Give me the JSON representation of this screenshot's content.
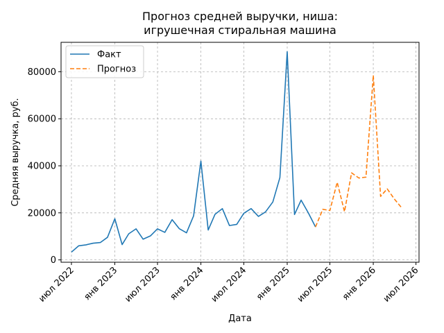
{
  "chart_data": {
    "type": "line",
    "title_lines": [
      "Прогноз средней выручки, ниша:",
      "игрушечная стиральная машина"
    ],
    "xlabel": "Дата",
    "ylabel": "Средняя выручка, руб.",
    "xlim": [
      "2022-05-18",
      "2026-07-14"
    ],
    "ylim": [
      -1000,
      92500
    ],
    "x_ticks": [
      {
        "date": "2022-07-01",
        "label": "июл 2022"
      },
      {
        "date": "2023-01-01",
        "label": "янв 2023"
      },
      {
        "date": "2023-07-01",
        "label": "июл 2023"
      },
      {
        "date": "2024-01-01",
        "label": "янв 2024"
      },
      {
        "date": "2024-07-01",
        "label": "июл 2024"
      },
      {
        "date": "2025-01-01",
        "label": "янв 2025"
      },
      {
        "date": "2025-07-01",
        "label": "июл 2025"
      },
      {
        "date": "2026-01-01",
        "label": "янв 2026"
      },
      {
        "date": "2026-07-01",
        "label": "июл 2026"
      }
    ],
    "y_ticks": [
      0,
      20000,
      40000,
      60000,
      80000
    ],
    "y_tick_labels": [
      "0",
      "20000",
      "40000",
      "60000",
      "80000"
    ],
    "grid": true,
    "legend_position": "top-left",
    "series": [
      {
        "name": "Факт",
        "color": "#1f77b4",
        "style": "solid",
        "x": [
          "2022-07-01",
          "2022-08-01",
          "2022-09-01",
          "2022-10-01",
          "2022-11-01",
          "2022-12-01",
          "2023-01-01",
          "2023-02-01",
          "2023-03-01",
          "2023-04-01",
          "2023-05-01",
          "2023-06-01",
          "2023-07-01",
          "2023-08-01",
          "2023-09-01",
          "2023-10-01",
          "2023-11-01",
          "2023-12-01",
          "2024-01-01",
          "2024-02-01",
          "2024-03-01",
          "2024-04-01",
          "2024-05-01",
          "2024-06-01",
          "2024-07-01",
          "2024-08-01",
          "2024-09-01",
          "2024-10-01",
          "2024-11-01",
          "2024-12-01",
          "2025-01-01",
          "2025-02-01",
          "2025-03-01",
          "2025-04-01",
          "2025-05-01"
        ],
        "values": [
          3300,
          6000,
          6400,
          7100,
          7400,
          9600,
          17500,
          6500,
          11100,
          13200,
          8800,
          10200,
          13200,
          11700,
          17100,
          13300,
          11500,
          18700,
          42000,
          12700,
          19400,
          21800,
          14600,
          15100,
          19800,
          21800,
          18500,
          20400,
          24600,
          35000,
          88500,
          19300,
          25400,
          19900,
          14000
        ]
      },
      {
        "name": "Прогноз",
        "color": "#ff7f0e",
        "style": "dashed",
        "x": [
          "2025-05-01",
          "2025-06-01",
          "2025-07-01",
          "2025-08-01",
          "2025-09-01",
          "2025-10-01",
          "2025-11-01",
          "2025-12-01",
          "2026-01-01",
          "2026-02-01",
          "2026-03-01",
          "2026-04-01",
          "2026-05-01"
        ],
        "values": [
          14000,
          21500,
          21000,
          33000,
          20500,
          37000,
          34800,
          35200,
          78500,
          27000,
          30200,
          25800,
          22200
        ]
      }
    ]
  }
}
